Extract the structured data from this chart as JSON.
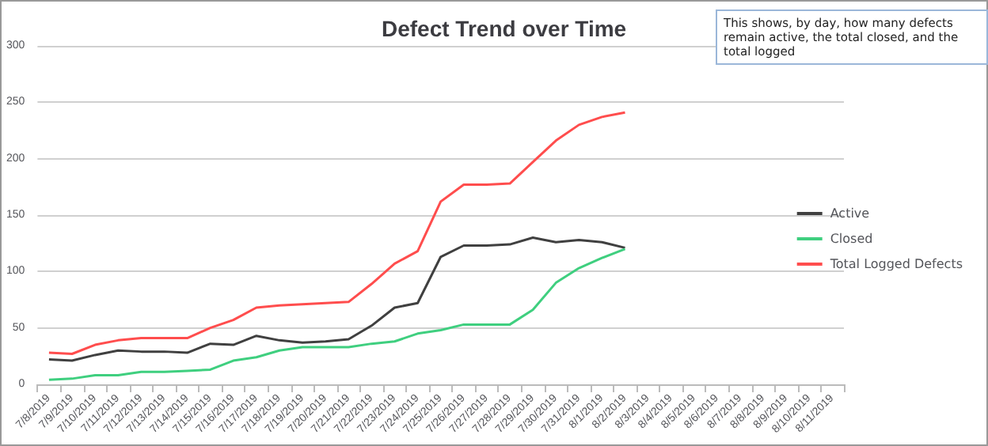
{
  "chart_data": {
    "type": "line",
    "title": "Defect Trend over Time",
    "annotations": [
      "This shows, by day, how many defects remain active, the total closed, and the total logged"
    ],
    "categories": [
      "7/8/2019",
      "7/9/2019",
      "7/10/2019",
      "7/11/2019",
      "7/12/2019",
      "7/13/2019",
      "7/14/2019",
      "7/15/2019",
      "7/16/2019",
      "7/17/2019",
      "7/18/2019",
      "7/19/2019",
      "7/20/2019",
      "7/21/2019",
      "7/22/2019",
      "7/23/2019",
      "7/24/2019",
      "7/25/2019",
      "7/26/2019",
      "7/27/2019",
      "7/28/2019",
      "7/29/2019",
      "7/30/2019",
      "7/31/2019",
      "8/1/2019",
      "8/2/2019",
      "8/3/2019",
      "8/4/2019",
      "8/5/2019",
      "8/6/2019",
      "8/7/2019",
      "8/8/2019",
      "8/9/2019",
      "8/10/2019",
      "8/11/2019"
    ],
    "series": [
      {
        "name": "Active",
        "color": "#404040",
        "values": [
          22,
          21,
          26,
          30,
          29,
          29,
          28,
          36,
          35,
          43,
          39,
          37,
          38,
          40,
          52,
          68,
          72,
          113,
          123,
          123,
          124,
          130,
          126,
          128,
          126,
          121,
          null,
          null,
          null,
          null,
          null,
          null,
          null,
          null,
          null
        ]
      },
      {
        "name": "Closed",
        "color": "#3fcf7f",
        "values": [
          4,
          5,
          8,
          8,
          11,
          11,
          12,
          13,
          21,
          24,
          30,
          33,
          33,
          33,
          36,
          38,
          45,
          48,
          53,
          53,
          53,
          66,
          90,
          103,
          112,
          120,
          null,
          null,
          null,
          null,
          null,
          null,
          null,
          null,
          null
        ]
      },
      {
        "name": "Total Logged Defects",
        "color": "#ff4d4d",
        "values": [
          28,
          27,
          35,
          39,
          41,
          41,
          41,
          50,
          57,
          68,
          70,
          71,
          72,
          73,
          89,
          107,
          118,
          162,
          177,
          177,
          178,
          197,
          216,
          230,
          237,
          241,
          null,
          null,
          null,
          null,
          null,
          null,
          null,
          null,
          null
        ]
      }
    ],
    "ylim": [
      0,
      300
    ],
    "yticks": [
      0,
      50,
      100,
      150,
      200,
      250,
      300
    ],
    "grid": "y",
    "legend": "right",
    "marker": "none",
    "line_style": "solid"
  }
}
